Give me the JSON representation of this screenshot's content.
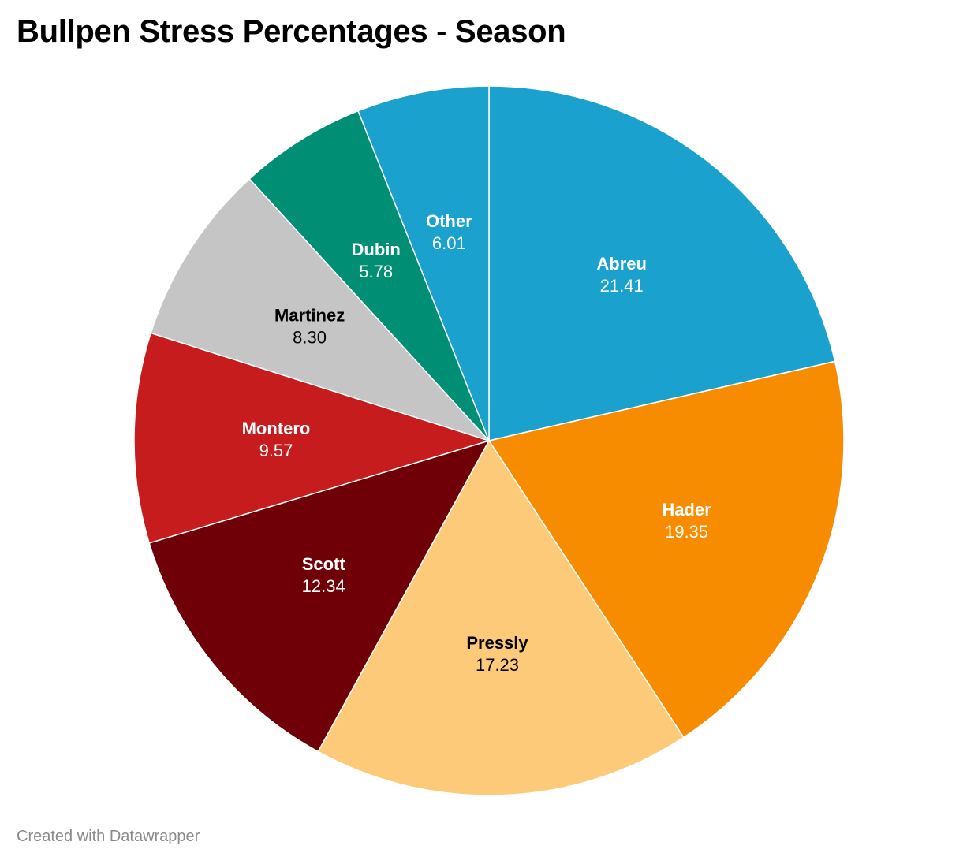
{
  "chart_data": {
    "type": "pie",
    "title": "Bullpen Stress Percentages - Season",
    "slices": [
      {
        "name": "Abreu",
        "value": 21.41,
        "color": "#1aa1cd",
        "text_color": "#ffffff"
      },
      {
        "name": "Hader",
        "value": 19.35,
        "color": "#f78c00",
        "text_color": "#ffffff"
      },
      {
        "name": "Pressly",
        "value": 17.23,
        "color": "#fdca7a",
        "text_color": "#000000"
      },
      {
        "name": "Scott",
        "value": 12.34,
        "color": "#6f0008",
        "text_color": "#ffffff"
      },
      {
        "name": "Montero",
        "value": 9.57,
        "color": "#c71c1d",
        "text_color": "#ffffff"
      },
      {
        "name": "Martinez",
        "value": 8.3,
        "color": "#c5c5c5",
        "text_color": "#000000"
      },
      {
        "name": "Dubin",
        "value": 5.78,
        "color": "#008f74",
        "text_color": "#ffffff"
      },
      {
        "name": "Other",
        "value": 6.01,
        "color": "#1aa1cd",
        "text_color": "#ffffff"
      }
    ]
  },
  "footer": {
    "credit": "Created with Datawrapper"
  }
}
